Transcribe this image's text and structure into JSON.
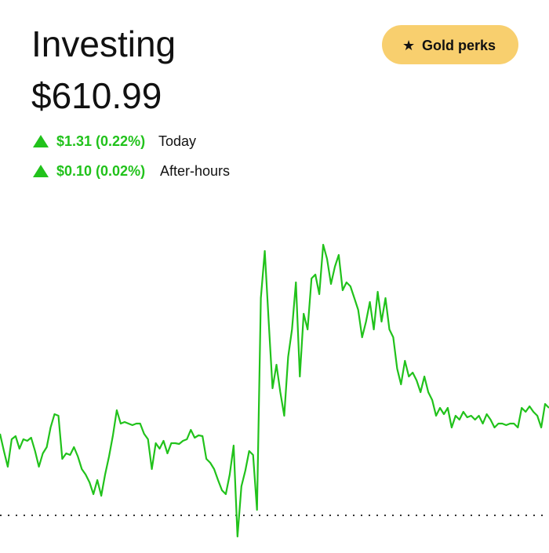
{
  "header": {
    "title": "Investing",
    "value": "$610.99",
    "button": "Gold perks"
  },
  "changes": [
    {
      "amount": "$1.31 (0.22%)",
      "label": "Today"
    },
    {
      "amount": "$0.10 (0.02%)",
      "label": "After-hours"
    }
  ],
  "chart_data": {
    "type": "line",
    "color": "#21c21b",
    "baseline": 609.68,
    "values": [
      610.72,
      610.5,
      610.3,
      610.65,
      610.69,
      610.53,
      610.65,
      610.63,
      610.67,
      610.5,
      610.3,
      610.47,
      610.55,
      610.8,
      610.97,
      610.95,
      610.4,
      610.47,
      610.45,
      610.55,
      610.43,
      610.27,
      610.2,
      610.1,
      609.95,
      610.13,
      609.93,
      610.2,
      610.43,
      610.7,
      611.02,
      610.85,
      610.87,
      610.85,
      610.83,
      610.85,
      610.85,
      610.72,
      610.65,
      610.27,
      610.6,
      610.53,
      610.63,
      610.47,
      610.6,
      610.6,
      610.59,
      610.63,
      610.65,
      610.77,
      610.67,
      610.7,
      610.69,
      610.4,
      610.35,
      610.27,
      610.13,
      610.0,
      609.95,
      610.2,
      610.57,
      609.41,
      610.05,
      610.25,
      610.5,
      610.45,
      609.75,
      612.45,
      613.05,
      612.15,
      611.3,
      611.6,
      611.25,
      610.95,
      611.7,
      612.05,
      612.65,
      611.45,
      612.25,
      612.05,
      612.7,
      612.75,
      612.5,
      613.13,
      612.95,
      612.63,
      612.85,
      613.0,
      612.55,
      612.65,
      612.6,
      612.45,
      612.3,
      611.95,
      612.15,
      612.4,
      612.05,
      612.53,
      612.15,
      612.45,
      612.05,
      611.95,
      611.55,
      611.35,
      611.65,
      611.45,
      611.5,
      611.4,
      611.25,
      611.45,
      611.25,
      611.15,
      610.95,
      611.05,
      610.97,
      611.05,
      610.8,
      610.95,
      610.9,
      611.0,
      610.93,
      610.95,
      610.9,
      610.95,
      610.85,
      610.97,
      610.9,
      610.8,
      610.85,
      610.85,
      610.83,
      610.85,
      610.85,
      610.8,
      611.05,
      611.0,
      611.07,
      611.0,
      610.95,
      610.8,
      611.1,
      611.05
    ]
  }
}
